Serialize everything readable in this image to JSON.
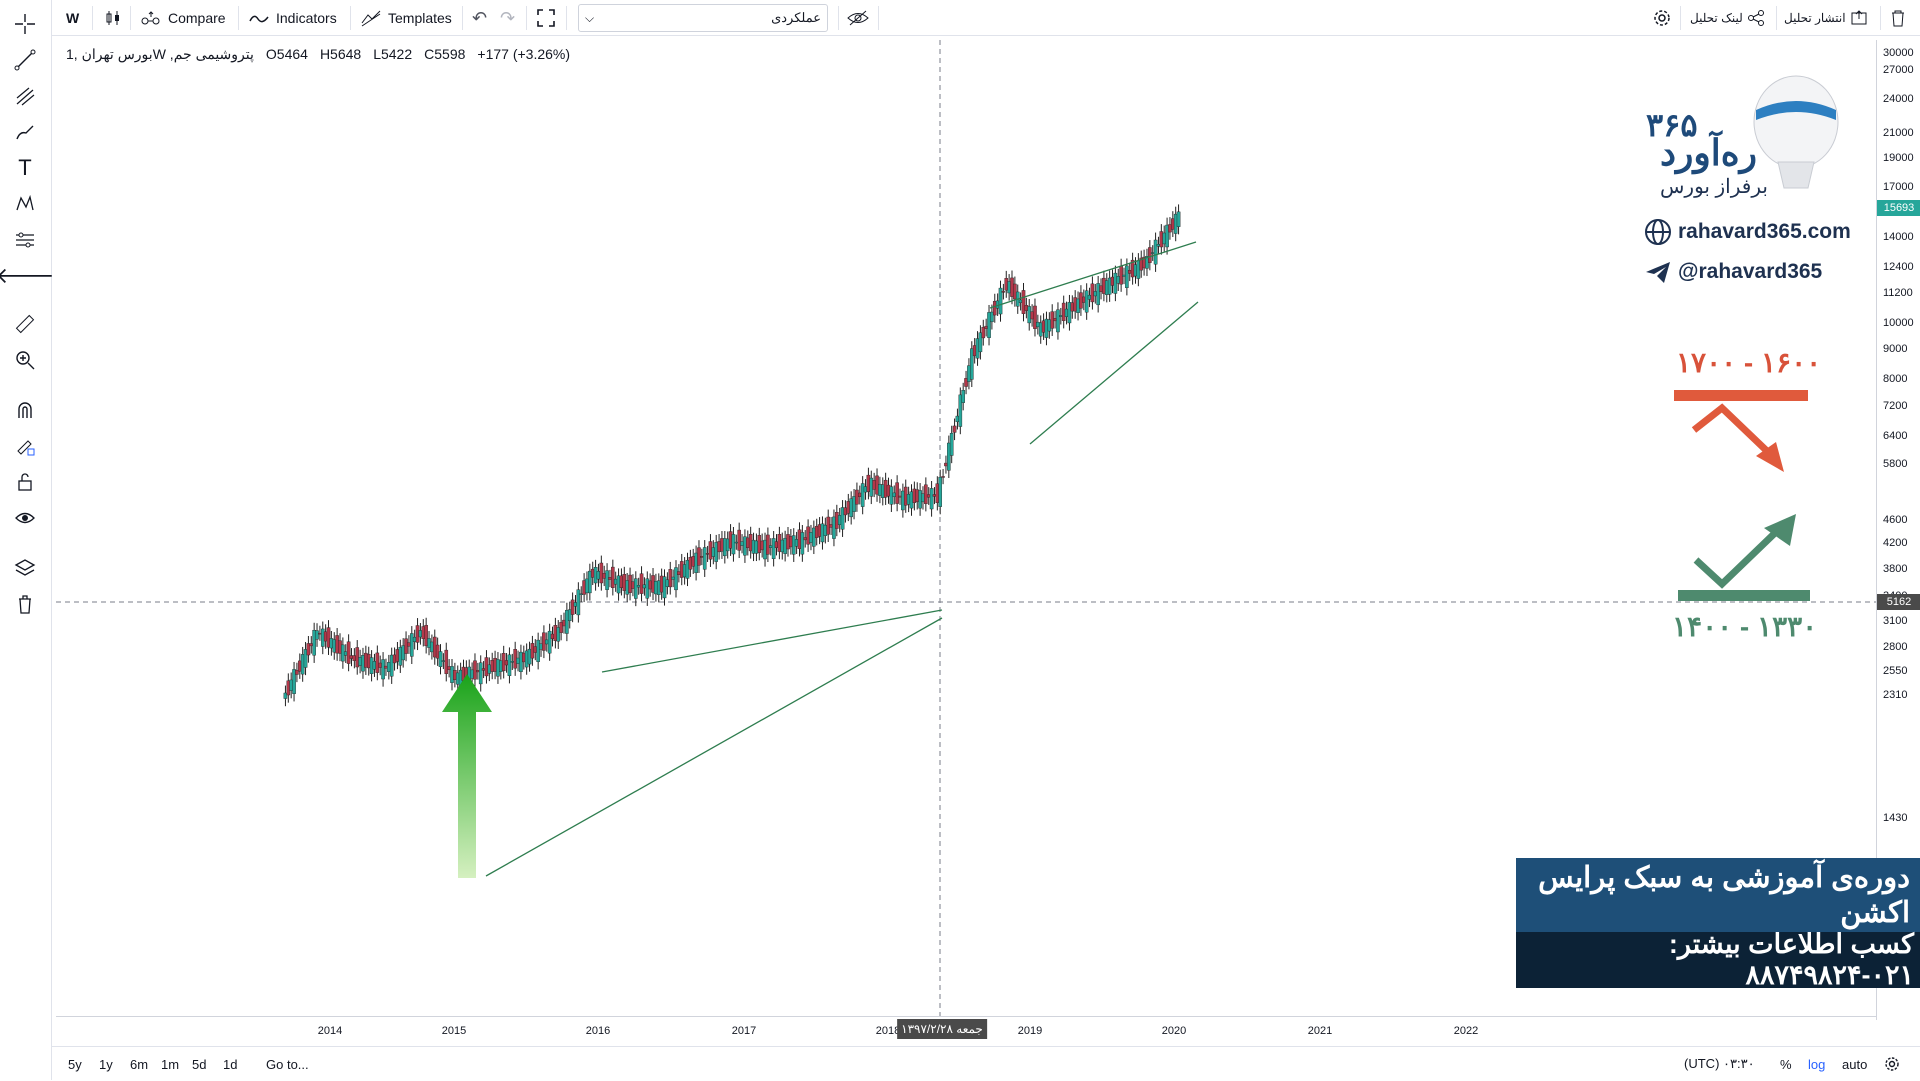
{
  "toolbar": {
    "interval": "W",
    "compare_label": "Compare",
    "indicators_label": "Indicators",
    "templates_label": "Templates",
    "symbol_search_value": "عملکردی",
    "share_analysis_label": "لینک تحلیل",
    "publish_analysis_label": "انتشار تحلیل"
  },
  "legend": {
    "symbol": "بورس تهران ,1W ,پتروشیمی جم",
    "open": "O5464",
    "high": "H5648",
    "low": "L5422",
    "close": "C5598",
    "change": "+177 (+3.26%)"
  },
  "price_axis": {
    "labels": [
      "30000",
      "27000",
      "24000",
      "21000",
      "19000",
      "17000",
      "14000",
      "12400",
      "11200",
      "10000",
      "9000",
      "8000",
      "7200",
      "6400",
      "5800",
      "4600",
      "4200",
      "3800",
      "3400",
      "3100",
      "2800",
      "2550",
      "2310",
      "1430"
    ],
    "last_price": "15693",
    "crosshair_price": "5162"
  },
  "time_axis": {
    "labels": [
      "2014",
      "2015",
      "2016",
      "2017",
      "2018",
      "2019",
      "2020",
      "2021",
      "2022"
    ],
    "crosshair_date": "جمعه ۱۳۹۷/۲/۲۸"
  },
  "bottom_bar": {
    "ranges": [
      "5y",
      "1y",
      "6m",
      "1m",
      "5d",
      "1d"
    ],
    "goto_label": "Go to...",
    "clock": "۰۳:۳۰ (UTC)",
    "percent_label": "%",
    "log_label": "log",
    "auto_label": "auto"
  },
  "branding": {
    "logo_number": "۳۶۵",
    "logo_name": "ره‌آورد",
    "logo_tagline": "برفراز بورس",
    "website": "rahavard365.com",
    "telegram": "@rahavard365"
  },
  "annotations": {
    "resistance_zone": "۱۶۰۰ - ۱۷۰۰",
    "support_zone": "۱۳۳۰ - ۱۴۰۰"
  },
  "banner": {
    "line1": "دوره‌ی آموزشی به سبک پرایس اکشن",
    "line2": "کسب اطلاعات بیشتر: ۰۲۱-۸۸۷۴۹۸۲۴"
  },
  "colors": {
    "up_candle": "#26a69a",
    "down_candle": "#b2384a",
    "trendline": "#2e7d4f",
    "resistance": "#e05a3c",
    "support": "#4e8a6e",
    "banner_top": "#1e4f78",
    "banner_bottom": "#0c2236"
  },
  "chart_data": {
    "type": "candlestick",
    "title": "",
    "xlabel": "",
    "ylabel": "",
    "log_scale": true,
    "x": [
      "2013-10",
      "2014-01",
      "2014-04",
      "2014-07",
      "2014-10",
      "2015-01",
      "2015-04",
      "2015-07",
      "2015-10",
      "2016-01",
      "2016-04",
      "2016-07",
      "2016-10",
      "2017-01",
      "2017-04",
      "2017-07",
      "2017-10",
      "2018-01",
      "2018-04",
      "2018-05",
      "2018-07",
      "2018-10",
      "2019-01",
      "2019-04",
      "2019-07",
      "2019-10",
      "2020-01"
    ],
    "close": [
      2300,
      3000,
      2700,
      2600,
      3000,
      2500,
      2600,
      2700,
      3000,
      3800,
      3600,
      3600,
      4000,
      4300,
      4200,
      4300,
      4600,
      5400,
      5100,
      5162,
      9000,
      12000,
      10000,
      11000,
      12000,
      13000,
      15693
    ],
    "ylim": [
      1430,
      30000
    ]
  }
}
